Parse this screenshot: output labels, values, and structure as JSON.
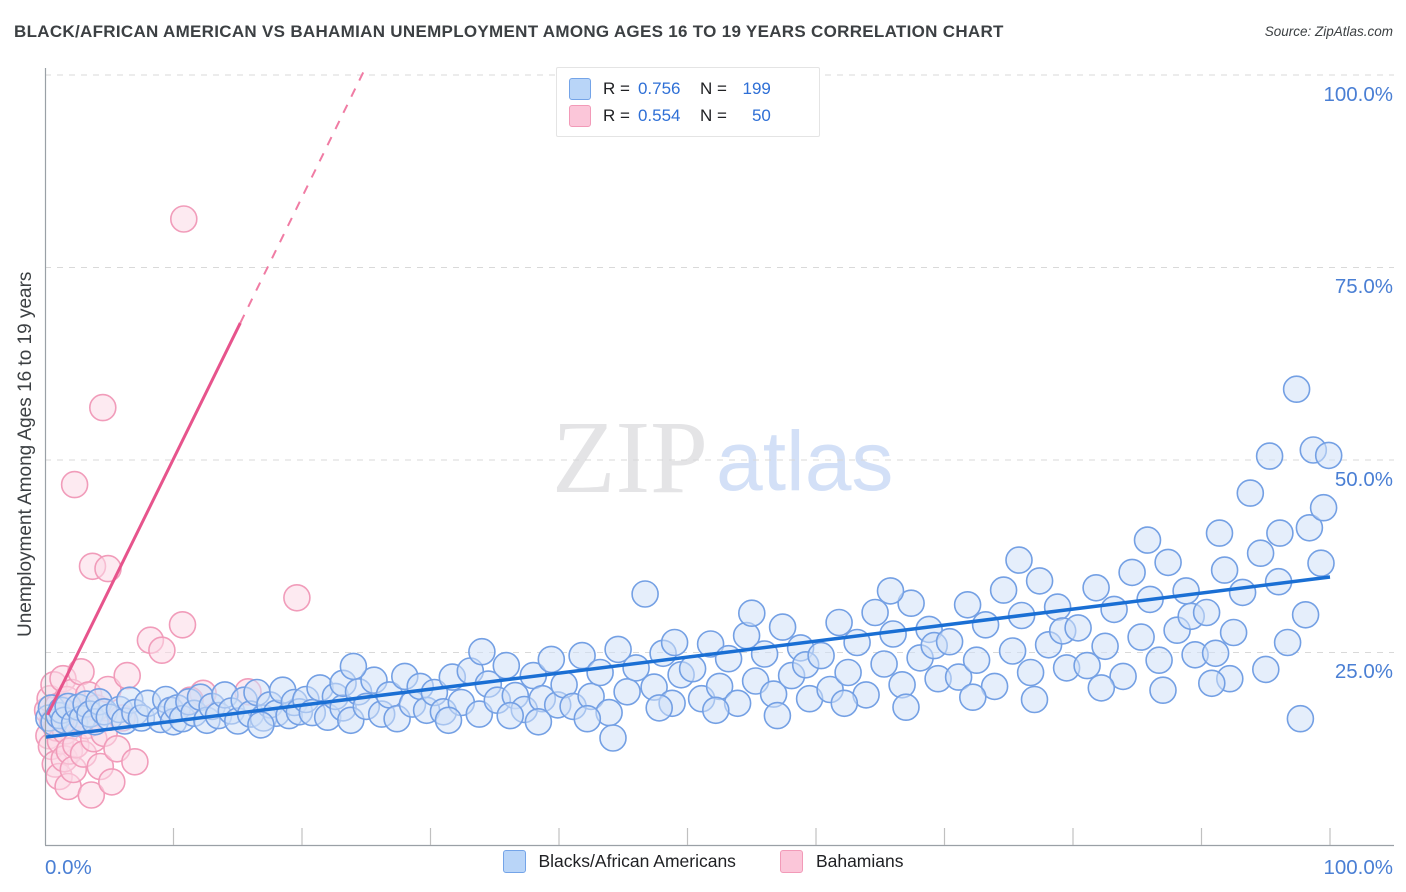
{
  "header": {
    "title": "BLACK/AFRICAN AMERICAN VS BAHAMIAN UNEMPLOYMENT AMONG AGES 16 TO 19 YEARS CORRELATION CHART",
    "source": "Source: ZipAtlas.com"
  },
  "watermark": {
    "part1": "ZIP",
    "part2": "atlas"
  },
  "legend_box": {
    "rows": [
      {
        "r_label": "R =",
        "r_value": "0.756",
        "n_label": "N =",
        "n_value": "199"
      },
      {
        "r_label": "R =",
        "r_value": "0.554",
        "n_label": "N =",
        "n_value": "50"
      }
    ]
  },
  "axes": {
    "y_label": "Unemployment Among Ages 16 to 19 years",
    "x_min_label": "0.0%",
    "x_max_label": "100.0%",
    "y_tick_labels": [
      "100.0%",
      "75.0%",
      "50.0%",
      "25.0%"
    ]
  },
  "bottom_legend": [
    {
      "label": "Blacks/African Americans"
    },
    {
      "label": "Bahamians"
    }
  ],
  "colors": {
    "blue_point_fill": "#cfe0f8",
    "blue_point_stroke": "#74a0e4",
    "pink_point_fill": "#fbd9e6",
    "pink_point_stroke": "#f19cba",
    "blue_trend": "#1a6fd4",
    "pink_trend": "#e7548c",
    "pink_trend_dashed": "#f07ca4",
    "grid": "#d9d9d9",
    "axis": "#9aa0a6",
    "tick": "#c0c0c0",
    "blue_text": "#4a7fd4",
    "watermark_zip": "#e4e4e6",
    "watermark_atlas": "#d3e0f7"
  },
  "chart_data": {
    "type": "scatter",
    "title": "Black/African American vs Bahamian Unemployment Among Ages 16 to 19 years",
    "xlim": [
      0,
      100
    ],
    "ylim": [
      0,
      100
    ],
    "grid": "horizontal dashed at 25/50/75/100",
    "legend_position": "top-center box; series legend bottom-center",
    "y_gridlines_percent": [
      25,
      50,
      75,
      100
    ],
    "x_axis_ticks_percent": [
      0,
      10,
      20,
      30,
      40,
      50,
      60,
      70,
      80,
      90,
      100
    ],
    "series": [
      {
        "name": "Blacks/African Americans",
        "R": 0.756,
        "N": 199,
        "points": [
          [
            0.3,
            16.5
          ],
          [
            0.5,
            17.8
          ],
          [
            0.7,
            15.9
          ],
          [
            1.1,
            16.8
          ],
          [
            1.3,
            17.5
          ],
          [
            1.5,
            16.2
          ],
          [
            1.8,
            18.0
          ],
          [
            2.3,
            15.8
          ],
          [
            2.6,
            17.9
          ],
          [
            2.9,
            16.4
          ],
          [
            3.2,
            18.3
          ],
          [
            3.5,
            17.0
          ],
          [
            3.9,
            16.0
          ],
          [
            4.2,
            18.6
          ],
          [
            4.6,
            17.3
          ],
          [
            5.0,
            16.6
          ],
          [
            5.8,
            17.6
          ],
          [
            6.2,
            16.1
          ],
          [
            6.6,
            18.8
          ],
          [
            7.0,
            17.2
          ],
          [
            7.5,
            16.5
          ],
          [
            8.0,
            18.4
          ],
          [
            9.0,
            16.3
          ],
          [
            9.4,
            18.9
          ],
          [
            9.8,
            17.5
          ],
          [
            10.0,
            16.0
          ],
          [
            10.3,
            17.8
          ],
          [
            10.7,
            16.4
          ],
          [
            11.2,
            18.6
          ],
          [
            11.6,
            17.1
          ],
          [
            12.1,
            19.2
          ],
          [
            12.6,
            16.2
          ],
          [
            13.0,
            18.0
          ],
          [
            13.5,
            16.8
          ],
          [
            14.0,
            19.5
          ],
          [
            14.5,
            17.4
          ],
          [
            15.0,
            16.1
          ],
          [
            15.5,
            18.8
          ],
          [
            16.0,
            17.0
          ],
          [
            16.5,
            19.8
          ],
          [
            17.0,
            16.5
          ],
          [
            17.5,
            18.2
          ],
          [
            18.0,
            17.1
          ],
          [
            18.5,
            20.1
          ],
          [
            19.0,
            16.8
          ],
          [
            19.4,
            18.5
          ],
          [
            19.8,
            17.3
          ],
          [
            16.8,
            15.6
          ],
          [
            20.3,
            18.9
          ],
          [
            20.8,
            17.2
          ],
          [
            21.4,
            20.4
          ],
          [
            22.0,
            16.6
          ],
          [
            22.6,
            19.3
          ],
          [
            23.2,
            17.8
          ],
          [
            23.2,
            21.0
          ],
          [
            23.8,
            16.2
          ],
          [
            24.4,
            19.9
          ],
          [
            25.0,
            18.0
          ],
          [
            25.6,
            21.4
          ],
          [
            26.2,
            17.0
          ],
          [
            26.8,
            19.5
          ],
          [
            27.4,
            16.4
          ],
          [
            28.0,
            21.9
          ],
          [
            28.6,
            18.3
          ],
          [
            29.2,
            20.6
          ],
          [
            29.7,
            17.5
          ],
          [
            24.0,
            23.2
          ],
          [
            30.3,
            19.8
          ],
          [
            31.0,
            17.3
          ],
          [
            31.7,
            21.8
          ],
          [
            32.4,
            18.5
          ],
          [
            33.1,
            22.6
          ],
          [
            33.8,
            17.0
          ],
          [
            34.5,
            20.9
          ],
          [
            35.2,
            18.8
          ],
          [
            35.9,
            23.3
          ],
          [
            36.6,
            19.4
          ],
          [
            37.3,
            17.6
          ],
          [
            38.0,
            22.0
          ],
          [
            38.7,
            19.0
          ],
          [
            39.4,
            24.1
          ],
          [
            39.9,
            18.2
          ],
          [
            31.4,
            16.2
          ],
          [
            36.2,
            16.8
          ],
          [
            34.0,
            25.1
          ],
          [
            38.4,
            16.0
          ],
          [
            40.4,
            20.8
          ],
          [
            41.1,
            18.0
          ],
          [
            41.8,
            24.6
          ],
          [
            42.5,
            19.3
          ],
          [
            43.2,
            22.4
          ],
          [
            43.9,
            17.2
          ],
          [
            44.6,
            25.4
          ],
          [
            45.3,
            19.9
          ],
          [
            46.0,
            23.0
          ],
          [
            46.7,
            32.6
          ],
          [
            47.4,
            20.5
          ],
          [
            48.1,
            24.9
          ],
          [
            48.8,
            18.4
          ],
          [
            49.5,
            22.1
          ],
          [
            42.2,
            16.4
          ],
          [
            47.8,
            17.8
          ],
          [
            44.2,
            13.9
          ],
          [
            49.0,
            26.3
          ],
          [
            50.4,
            22.9
          ],
          [
            51.1,
            19.0
          ],
          [
            51.8,
            26.1
          ],
          [
            52.5,
            20.6
          ],
          [
            53.2,
            24.2
          ],
          [
            53.9,
            18.4
          ],
          [
            54.6,
            27.2
          ],
          [
            55.3,
            21.3
          ],
          [
            56.0,
            24.8
          ],
          [
            56.7,
            19.6
          ],
          [
            57.4,
            28.3
          ],
          [
            58.1,
            22.0
          ],
          [
            58.8,
            25.6
          ],
          [
            59.5,
            19.0
          ],
          [
            52.2,
            17.5
          ],
          [
            57.0,
            16.8
          ],
          [
            55.0,
            30.1
          ],
          [
            59.2,
            23.4
          ],
          [
            60.4,
            24.6
          ],
          [
            61.1,
            20.2
          ],
          [
            61.8,
            28.9
          ],
          [
            62.5,
            22.4
          ],
          [
            63.2,
            26.3
          ],
          [
            63.9,
            19.5
          ],
          [
            64.6,
            30.2
          ],
          [
            65.3,
            23.5
          ],
          [
            66.0,
            27.4
          ],
          [
            66.7,
            20.8
          ],
          [
            67.4,
            31.4
          ],
          [
            68.1,
            24.3
          ],
          [
            68.8,
            28.0
          ],
          [
            69.5,
            21.6
          ],
          [
            62.2,
            18.4
          ],
          [
            67.0,
            17.9
          ],
          [
            65.8,
            33.0
          ],
          [
            69.2,
            25.9
          ],
          [
            70.4,
            26.4
          ],
          [
            71.1,
            21.8
          ],
          [
            71.8,
            31.2
          ],
          [
            72.5,
            24.0
          ],
          [
            73.2,
            28.6
          ],
          [
            73.9,
            20.6
          ],
          [
            74.6,
            33.1
          ],
          [
            75.3,
            25.2
          ],
          [
            76.0,
            29.8
          ],
          [
            76.7,
            22.4
          ],
          [
            77.4,
            34.3
          ],
          [
            78.1,
            26.0
          ],
          [
            78.8,
            30.9
          ],
          [
            79.5,
            23.0
          ],
          [
            72.2,
            19.2
          ],
          [
            77.0,
            18.9
          ],
          [
            75.8,
            37.0
          ],
          [
            79.2,
            27.8
          ],
          [
            80.4,
            28.2
          ],
          [
            81.1,
            23.3
          ],
          [
            81.8,
            33.4
          ],
          [
            82.5,
            25.8
          ],
          [
            83.2,
            30.6
          ],
          [
            83.9,
            21.9
          ],
          [
            84.6,
            35.4
          ],
          [
            85.3,
            27.0
          ],
          [
            86.0,
            31.9
          ],
          [
            86.7,
            24.0
          ],
          [
            87.4,
            36.7
          ],
          [
            88.1,
            27.9
          ],
          [
            88.8,
            33.0
          ],
          [
            89.5,
            24.7
          ],
          [
            82.2,
            20.4
          ],
          [
            87.0,
            20.1
          ],
          [
            85.8,
            39.6
          ],
          [
            89.2,
            29.7
          ],
          [
            90.4,
            30.2
          ],
          [
            91.1,
            24.9
          ],
          [
            91.8,
            35.7
          ],
          [
            92.5,
            27.6
          ],
          [
            93.2,
            32.8
          ],
          [
            93.8,
            45.7
          ],
          [
            94.6,
            37.9
          ],
          [
            95.3,
            50.5
          ],
          [
            96.0,
            34.2
          ],
          [
            96.7,
            26.3
          ],
          [
            97.4,
            59.2
          ],
          [
            98.1,
            29.9
          ],
          [
            98.7,
            51.3
          ],
          [
            99.3,
            36.6
          ],
          [
            99.9,
            50.6
          ],
          [
            91.4,
            40.5
          ],
          [
            96.1,
            40.5
          ],
          [
            98.4,
            41.2
          ],
          [
            92.2,
            21.6
          ],
          [
            97.7,
            16.4
          ],
          [
            95.0,
            22.8
          ],
          [
            99.5,
            43.8
          ],
          [
            90.8,
            21.0
          ]
        ]
      },
      {
        "name": "Bahamians",
        "R": 0.554,
        "N": 50,
        "points": [
          [
            0.2,
            17.5
          ],
          [
            0.3,
            14.2
          ],
          [
            0.4,
            19.0
          ],
          [
            0.5,
            12.8
          ],
          [
            0.6,
            16.0
          ],
          [
            0.7,
            20.8
          ],
          [
            0.8,
            10.5
          ],
          [
            0.9,
            15.2
          ],
          [
            1.0,
            18.0
          ],
          [
            1.1,
            8.9
          ],
          [
            1.2,
            13.5
          ],
          [
            1.3,
            16.8
          ],
          [
            1.4,
            21.6
          ],
          [
            1.5,
            11.2
          ],
          [
            1.6,
            14.8
          ],
          [
            1.7,
            18.9
          ],
          [
            1.8,
            7.6
          ],
          [
            1.9,
            12.2
          ],
          [
            2.0,
            16.2
          ],
          [
            2.1,
            19.8
          ],
          [
            2.2,
            9.8
          ],
          [
            2.4,
            13.0
          ],
          [
            2.6,
            17.0
          ],
          [
            2.8,
            22.5
          ],
          [
            3.0,
            11.8
          ],
          [
            3.2,
            15.5
          ],
          [
            3.4,
            19.5
          ],
          [
            3.6,
            6.5
          ],
          [
            3.8,
            13.8
          ],
          [
            4.0,
            17.8
          ],
          [
            4.3,
            10.2
          ],
          [
            4.6,
            14.5
          ],
          [
            4.9,
            20.2
          ],
          [
            5.2,
            8.2
          ],
          [
            5.6,
            12.5
          ],
          [
            6.0,
            16.5
          ],
          [
            6.4,
            22.0
          ],
          [
            7.0,
            10.8
          ],
          [
            8.2,
            26.6
          ],
          [
            9.1,
            25.3
          ],
          [
            2.3,
            46.8
          ],
          [
            4.5,
            56.8
          ],
          [
            10.8,
            81.3
          ],
          [
            3.7,
            36.2
          ],
          [
            4.9,
            35.9
          ],
          [
            10.7,
            28.6
          ],
          [
            12.3,
            19.7
          ],
          [
            15.8,
            19.9
          ],
          [
            19.6,
            32.1
          ],
          [
            11.3,
            18.8
          ]
        ]
      }
    ],
    "trend_lines": [
      {
        "series": "Blacks/African Americans",
        "style": "solid",
        "start": [
          0,
          14.0
        ],
        "end": [
          100,
          34.8
        ]
      },
      {
        "series": "Bahamians",
        "style": "solid",
        "start": [
          0.2,
          16.9
        ],
        "end": [
          15.2,
          67.8
        ]
      },
      {
        "series": "Bahamians",
        "style": "dashed",
        "start": [
          15.2,
          67.8
        ],
        "end": [
          24.9,
          100.8
        ]
      }
    ]
  }
}
